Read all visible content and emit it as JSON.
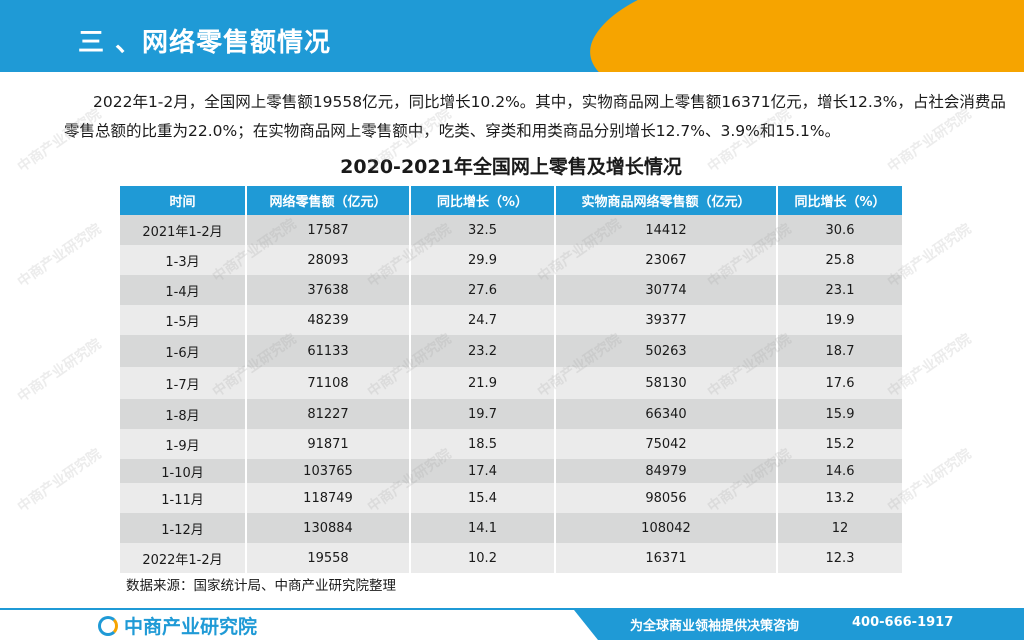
{
  "header": {
    "title": "三 、网络零售额情况"
  },
  "paragraph": "2022年1-2月，全国网上零售额19558亿元，同比增长10.2%。其中，实物商品网上零售额16371亿元，增长12.3%，占社会消费品零售总额的比重为22.0%；在实物商品网上零售额中，吃类、穿类和用类商品分别增长12.7%、3.9%和15.1%。",
  "table": {
    "title": "2020-2021年全国网上零售及增长情况",
    "headers": [
      "时间",
      "网络零售额（亿元）",
      "同比增长（%）",
      "实物商品网络零售额（亿元）",
      "同比增长（%）"
    ],
    "rows": [
      [
        "2021年1-2月",
        "17587",
        "32.5",
        "14412",
        "30.6"
      ],
      [
        "1-3月",
        "28093",
        "29.9",
        "23067",
        "25.8"
      ],
      [
        "1-4月",
        "37638",
        "27.6",
        "30774",
        "23.1"
      ],
      [
        "1-5月",
        "48239",
        "24.7",
        "39377",
        "19.9"
      ],
      [
        "1-6月",
        "61133",
        "23.2",
        "50263",
        "18.7"
      ],
      [
        "1-7月",
        "71108",
        "21.9",
        "58130",
        "17.6"
      ],
      [
        "1-8月",
        "81227",
        "19.7",
        "66340",
        "15.9"
      ],
      [
        "1-9月",
        "91871",
        "18.5",
        "75042",
        "15.2"
      ],
      [
        "1-10月",
        "103765",
        "17.4",
        "84979",
        "14.6"
      ],
      [
        "1-11月",
        "118749",
        "15.4",
        "98056",
        "13.2"
      ],
      [
        "1-12月",
        "130884",
        "14.1",
        "108042",
        "12"
      ],
      [
        "2022年1-2月",
        "19558",
        "10.2",
        "16371",
        "12.3"
      ]
    ]
  },
  "source": "数据来源：国家统计局、中商产业研究院整理",
  "footer": {
    "logo_text": "中商产业研究院",
    "slogan": "为全球商业领袖提供决策咨询",
    "phone": "400-666-1917"
  },
  "watermark": {
    "text": "中商产业研究院"
  },
  "colors": {
    "primary_blue": "#1f9ad6",
    "accent_orange": "#f6a400",
    "row_dark": "#d7d8d8",
    "row_light": "#ebebeb"
  }
}
